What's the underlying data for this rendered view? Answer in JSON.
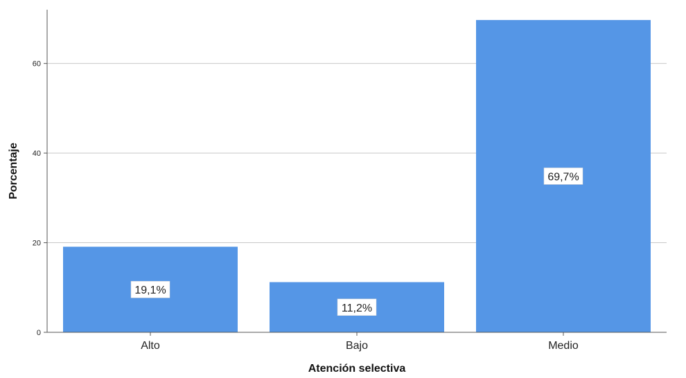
{
  "chart_data": {
    "type": "bar",
    "categories": [
      "Alto",
      "Bajo",
      "Medio"
    ],
    "values": [
      19.1,
      11.2,
      69.7
    ],
    "data_labels": [
      "19,1%",
      "11,2%",
      "69,7%"
    ],
    "xlabel": "Atención selectiva",
    "ylabel": "Porcentaje",
    "ylim": [
      0,
      72
    ],
    "yticks": [
      0,
      20,
      40,
      60
    ],
    "ytick_labels": [
      "0",
      "20",
      "40",
      "60"
    ],
    "grid": true,
    "colors": {
      "bar": "#5596e6",
      "grid": "#c8c8c8",
      "axis": "#555555"
    }
  }
}
